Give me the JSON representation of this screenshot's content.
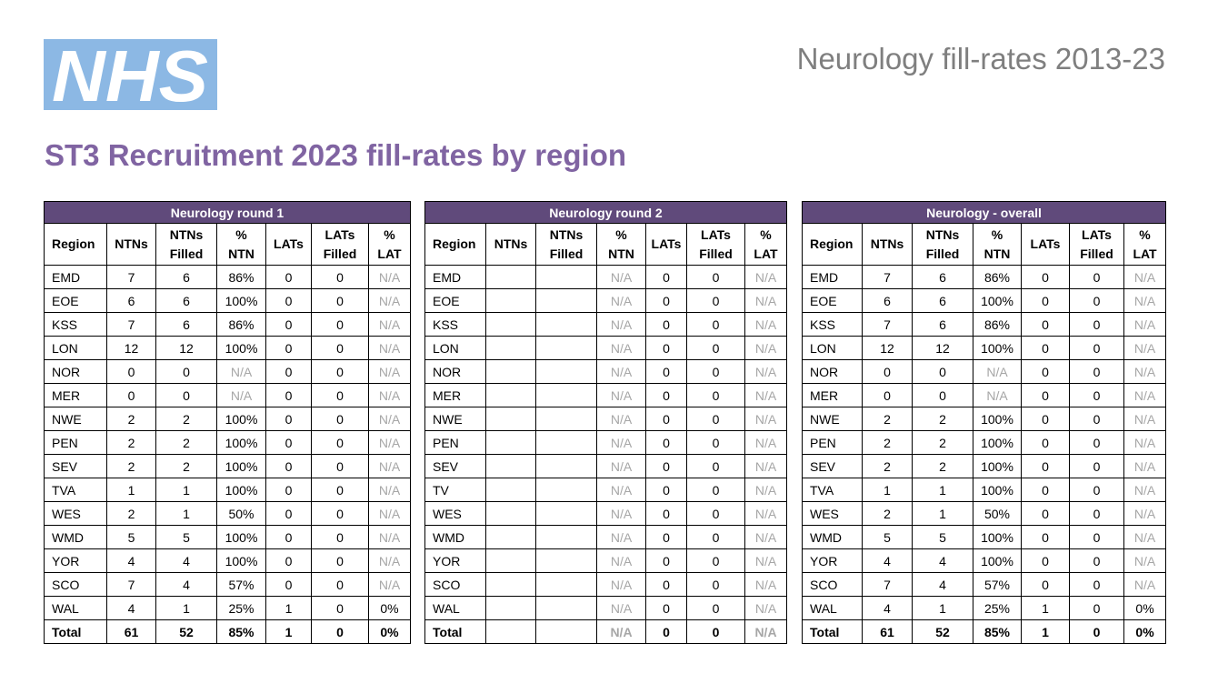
{
  "header": {
    "logo_text": "NHS",
    "deck_title": "Neurology fill-rates 2013-23",
    "page_title": "ST3 Recruitment 2023 fill-rates by region"
  },
  "colors": {
    "logo_bg": "#8cb8e4",
    "title_purple": "#8064a2",
    "table_header_bg": "#604a7b",
    "na_grey": "#a6a6a6"
  },
  "columns": [
    "Region",
    "NTNs",
    "NTNs Filled",
    "% NTN",
    "LATs",
    "LATs Filled",
    "% LAT"
  ],
  "tables": [
    {
      "title": "Neurology round 1",
      "rows": [
        [
          "EMD",
          "7",
          "6",
          "86%",
          "0",
          "0",
          "N/A"
        ],
        [
          "EOE",
          "6",
          "6",
          "100%",
          "0",
          "0",
          "N/A"
        ],
        [
          "KSS",
          "7",
          "6",
          "86%",
          "0",
          "0",
          "N/A"
        ],
        [
          "LON",
          "12",
          "12",
          "100%",
          "0",
          "0",
          "N/A"
        ],
        [
          "NOR",
          "0",
          "0",
          "N/A",
          "0",
          "0",
          "N/A"
        ],
        [
          "MER",
          "0",
          "0",
          "N/A",
          "0",
          "0",
          "N/A"
        ],
        [
          "NWE",
          "2",
          "2",
          "100%",
          "0",
          "0",
          "N/A"
        ],
        [
          "PEN",
          "2",
          "2",
          "100%",
          "0",
          "0",
          "N/A"
        ],
        [
          "SEV",
          "2",
          "2",
          "100%",
          "0",
          "0",
          "N/A"
        ],
        [
          "TVA",
          "1",
          "1",
          "100%",
          "0",
          "0",
          "N/A"
        ],
        [
          "WES",
          "2",
          "1",
          "50%",
          "0",
          "0",
          "N/A"
        ],
        [
          "WMD",
          "5",
          "5",
          "100%",
          "0",
          "0",
          "N/A"
        ],
        [
          "YOR",
          "4",
          "4",
          "100%",
          "0",
          "0",
          "N/A"
        ],
        [
          "SCO",
          "7",
          "4",
          "57%",
          "0",
          "0",
          "N/A"
        ],
        [
          "WAL",
          "4",
          "1",
          "25%",
          "1",
          "0",
          "0%"
        ]
      ],
      "total": [
        "Total",
        "61",
        "52",
        "85%",
        "1",
        "0",
        "0%"
      ]
    },
    {
      "title": "Neurology round 2",
      "rows": [
        [
          "EMD",
          "",
          "",
          "N/A",
          "0",
          "0",
          "N/A"
        ],
        [
          "EOE",
          "",
          "",
          "N/A",
          "0",
          "0",
          "N/A"
        ],
        [
          "KSS",
          "",
          "",
          "N/A",
          "0",
          "0",
          "N/A"
        ],
        [
          "LON",
          "",
          "",
          "N/A",
          "0",
          "0",
          "N/A"
        ],
        [
          "NOR",
          "",
          "",
          "N/A",
          "0",
          "0",
          "N/A"
        ],
        [
          "MER",
          "",
          "",
          "N/A",
          "0",
          "0",
          "N/A"
        ],
        [
          "NWE",
          "",
          "",
          "N/A",
          "0",
          "0",
          "N/A"
        ],
        [
          "PEN",
          "",
          "",
          "N/A",
          "0",
          "0",
          "N/A"
        ],
        [
          "SEV",
          "",
          "",
          "N/A",
          "0",
          "0",
          "N/A"
        ],
        [
          "TV",
          "",
          "",
          "N/A",
          "0",
          "0",
          "N/A"
        ],
        [
          "WES",
          "",
          "",
          "N/A",
          "0",
          "0",
          "N/A"
        ],
        [
          "WMD",
          "",
          "",
          "N/A",
          "0",
          "0",
          "N/A"
        ],
        [
          "YOR",
          "",
          "",
          "N/A",
          "0",
          "0",
          "N/A"
        ],
        [
          "SCO",
          "",
          "",
          "N/A",
          "0",
          "0",
          "N/A"
        ],
        [
          "WAL",
          "",
          "",
          "N/A",
          "0",
          "0",
          "N/A"
        ]
      ],
      "total": [
        "Total",
        "",
        "",
        "N/A",
        "0",
        "0",
        "N/A"
      ]
    },
    {
      "title": "Neurology - overall",
      "rows": [
        [
          "EMD",
          "7",
          "6",
          "86%",
          "0",
          "0",
          "N/A"
        ],
        [
          "EOE",
          "6",
          "6",
          "100%",
          "0",
          "0",
          "N/A"
        ],
        [
          "KSS",
          "7",
          "6",
          "86%",
          "0",
          "0",
          "N/A"
        ],
        [
          "LON",
          "12",
          "12",
          "100%",
          "0",
          "0",
          "N/A"
        ],
        [
          "NOR",
          "0",
          "0",
          "N/A",
          "0",
          "0",
          "N/A"
        ],
        [
          "MER",
          "0",
          "0",
          "N/A",
          "0",
          "0",
          "N/A"
        ],
        [
          "NWE",
          "2",
          "2",
          "100%",
          "0",
          "0",
          "N/A"
        ],
        [
          "PEN",
          "2",
          "2",
          "100%",
          "0",
          "0",
          "N/A"
        ],
        [
          "SEV",
          "2",
          "2",
          "100%",
          "0",
          "0",
          "N/A"
        ],
        [
          "TVA",
          "1",
          "1",
          "100%",
          "0",
          "0",
          "N/A"
        ],
        [
          "WES",
          "2",
          "1",
          "50%",
          "0",
          "0",
          "N/A"
        ],
        [
          "WMD",
          "5",
          "5",
          "100%",
          "0",
          "0",
          "N/A"
        ],
        [
          "YOR",
          "4",
          "4",
          "100%",
          "0",
          "0",
          "N/A"
        ],
        [
          "SCO",
          "7",
          "4",
          "57%",
          "0",
          "0",
          "N/A"
        ],
        [
          "WAL",
          "4",
          "1",
          "25%",
          "1",
          "0",
          "0%"
        ]
      ],
      "total": [
        "Total",
        "61",
        "52",
        "85%",
        "1",
        "0",
        "0%"
      ]
    }
  ]
}
